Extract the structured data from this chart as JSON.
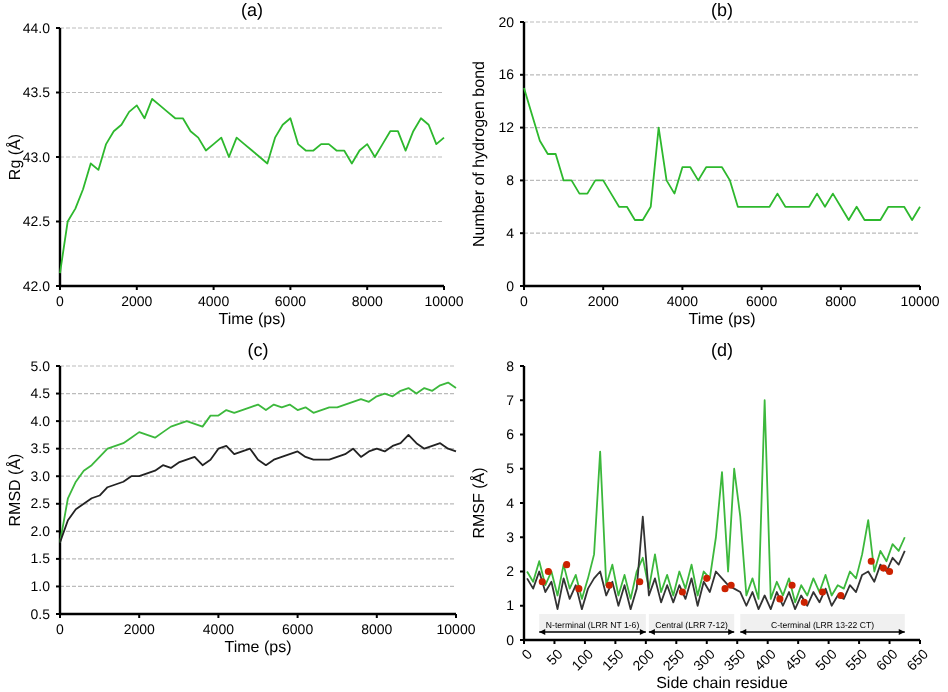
{
  "chart_data": [
    {
      "type": "line",
      "title": "(a)",
      "xlabel": "Time (ps)",
      "ylabel": "Rg (Å)",
      "xlim": [
        0,
        10000
      ],
      "xticks": [
        0,
        2000,
        4000,
        6000,
        8000,
        10000
      ],
      "ylim": [
        42,
        44
      ],
      "yticks": [
        {
          "value": 42,
          "label": "42.0"
        },
        42.5,
        {
          "value": 43,
          "label": "43.0"
        },
        43.5,
        {
          "value": 44,
          "label": "44.0"
        }
      ],
      "grid": "y",
      "line_style": "solid",
      "x": [
        0,
        200,
        400,
        600,
        800,
        1000,
        1200,
        1400,
        1600,
        1800,
        2000,
        2200,
        2400,
        2600,
        2800,
        3000,
        3200,
        3400,
        3600,
        3800,
        4000,
        4200,
        4400,
        4600,
        4800,
        5000,
        5200,
        5400,
        5600,
        5800,
        6000,
        6200,
        6400,
        6600,
        6800,
        7000,
        7200,
        7400,
        7600,
        7800,
        8000,
        8200,
        8400,
        8600,
        8800,
        9000,
        9200,
        9400,
        9600,
        9800,
        10000
      ],
      "series": [
        {
          "color": "#2db82d",
          "values": [
            42.1,
            42.5,
            42.6,
            42.75,
            42.95,
            42.9,
            43.1,
            43.2,
            43.25,
            43.35,
            43.4,
            43.3,
            43.45,
            43.4,
            43.35,
            43.3,
            43.3,
            43.2,
            43.15,
            43.05,
            43.1,
            43.15,
            43.0,
            43.15,
            43.1,
            43.05,
            43.0,
            42.95,
            43.15,
            43.25,
            43.3,
            43.1,
            43.05,
            43.05,
            43.1,
            43.1,
            43.05,
            43.05,
            42.95,
            43.05,
            43.1,
            43.0,
            43.1,
            43.2,
            43.2,
            43.05,
            43.2,
            43.3,
            43.25,
            43.1,
            43.15
          ]
        }
      ]
    },
    {
      "type": "line",
      "title": "(b)",
      "xlabel": "Time (ps)",
      "ylabel": "Number of hydrogen bond",
      "xlim": [
        0,
        10000
      ],
      "xticks": [
        0,
        2000,
        4000,
        6000,
        8000,
        10000
      ],
      "ylim": [
        0,
        20
      ],
      "yticks": [
        0,
        4,
        8,
        12,
        16,
        20
      ],
      "grid": "y",
      "line_style": "solid",
      "x": [
        0,
        200,
        400,
        600,
        800,
        1000,
        1200,
        1400,
        1600,
        1800,
        2000,
        2200,
        2400,
        2600,
        2800,
        3000,
        3200,
        3400,
        3600,
        3800,
        4000,
        4200,
        4400,
        4600,
        4800,
        5000,
        5200,
        5400,
        5600,
        5800,
        6000,
        6200,
        6400,
        6600,
        6800,
        7000,
        7200,
        7400,
        7600,
        7800,
        8000,
        8200,
        8400,
        8600,
        8800,
        9000,
        9200,
        9400,
        9600,
        9800,
        10000
      ],
      "series": [
        {
          "color": "#2db82d",
          "values": [
            15,
            13,
            11,
            10,
            10,
            8,
            8,
            7,
            7,
            8,
            8,
            7,
            6,
            6,
            5,
            5,
            6,
            12,
            8,
            7,
            9,
            9,
            8,
            9,
            9,
            9,
            8,
            6,
            6,
            6,
            6,
            6,
            7,
            6,
            6,
            6,
            6,
            7,
            6,
            7,
            6,
            5,
            6,
            5,
            5,
            5,
            6,
            6,
            6,
            5,
            6
          ]
        }
      ]
    },
    {
      "type": "line",
      "title": "(c)",
      "xlabel": "Time (ps)",
      "ylabel": "RMSD (Å)",
      "xlim": [
        0,
        10000
      ],
      "xticks": [
        0,
        2000,
        4000,
        6000,
        8000,
        10000
      ],
      "ylim": [
        0.5,
        5
      ],
      "yticks": [
        0.5,
        {
          "value": 1,
          "label": "1.0"
        },
        1.5,
        {
          "value": 2,
          "label": "2.0"
        },
        2.5,
        {
          "value": 3,
          "label": "3.0"
        },
        3.5,
        {
          "value": 4,
          "label": "4.0"
        },
        4.5,
        {
          "value": 5,
          "label": "5.0"
        }
      ],
      "grid": "y",
      "line_style": "solid",
      "x": [
        0,
        200,
        400,
        600,
        800,
        1000,
        1200,
        1400,
        1600,
        1800,
        2000,
        2200,
        2400,
        2600,
        2800,
        3000,
        3200,
        3400,
        3600,
        3800,
        4000,
        4200,
        4400,
        4600,
        4800,
        5000,
        5200,
        5400,
        5600,
        5800,
        6000,
        6200,
        6400,
        6600,
        6800,
        7000,
        7200,
        7400,
        7600,
        7800,
        8000,
        8200,
        8400,
        8600,
        8800,
        9000,
        9200,
        9400,
        9600,
        9800,
        10000
      ],
      "series": [
        {
          "color": "#3cb83c",
          "values": [
            1.8,
            2.6,
            2.9,
            3.1,
            3.2,
            3.35,
            3.5,
            3.55,
            3.6,
            3.7,
            3.8,
            3.75,
            3.7,
            3.8,
            3.9,
            3.95,
            4.0,
            3.95,
            3.9,
            4.1,
            4.1,
            4.2,
            4.15,
            4.2,
            4.25,
            4.3,
            4.2,
            4.3,
            4.25,
            4.3,
            4.2,
            4.25,
            4.15,
            4.2,
            4.25,
            4.25,
            4.3,
            4.35,
            4.4,
            4.35,
            4.45,
            4.5,
            4.45,
            4.55,
            4.6,
            4.5,
            4.6,
            4.55,
            4.65,
            4.7,
            4.6
          ]
        },
        {
          "color": "#222222",
          "values": [
            1.8,
            2.2,
            2.4,
            2.5,
            2.6,
            2.65,
            2.8,
            2.85,
            2.9,
            3.0,
            3.0,
            3.05,
            3.1,
            3.2,
            3.15,
            3.25,
            3.3,
            3.35,
            3.2,
            3.3,
            3.5,
            3.55,
            3.4,
            3.45,
            3.5,
            3.3,
            3.2,
            3.3,
            3.35,
            3.4,
            3.45,
            3.35,
            3.3,
            3.3,
            3.3,
            3.35,
            3.4,
            3.5,
            3.35,
            3.45,
            3.5,
            3.45,
            3.55,
            3.6,
            3.75,
            3.6,
            3.5,
            3.55,
            3.6,
            3.5,
            3.45
          ]
        }
      ]
    },
    {
      "type": "line",
      "title": "(d)",
      "xlabel": "Side chain residue",
      "ylabel": "RMSF (Å)",
      "xlim": [
        0,
        650
      ],
      "xticks": [
        0,
        50,
        100,
        150,
        200,
        250,
        300,
        350,
        400,
        450,
        500,
        550,
        600,
        650
      ],
      "ylim": [
        0,
        8
      ],
      "yticks": [
        0,
        1,
        2,
        3,
        4,
        5,
        6,
        7,
        8
      ],
      "grid": false,
      "line_style": "solid",
      "x": [
        5,
        15,
        25,
        35,
        45,
        55,
        65,
        75,
        85,
        95,
        105,
        115,
        125,
        135,
        145,
        155,
        165,
        175,
        185,
        195,
        205,
        215,
        225,
        235,
        245,
        255,
        265,
        275,
        285,
        295,
        305,
        315,
        325,
        335,
        345,
        355,
        365,
        375,
        385,
        395,
        405,
        415,
        425,
        435,
        445,
        455,
        465,
        475,
        485,
        495,
        505,
        515,
        525,
        535,
        545,
        555,
        565,
        575,
        585,
        595,
        605,
        615,
        625
      ],
      "series": [
        {
          "color": "#3cb83c",
          "values": [
            2.0,
            1.7,
            2.3,
            1.6,
            2.0,
            1.3,
            2.2,
            1.5,
            1.9,
            1.2,
            1.8,
            2.5,
            5.5,
            1.6,
            2.2,
            1.3,
            1.9,
            1.2,
            2.0,
            2.4,
            1.5,
            2.5,
            1.4,
            1.9,
            1.3,
            2.0,
            1.5,
            2.2,
            1.3,
            2.0,
            1.8,
            3.0,
            4.9,
            2.0,
            5.0,
            3.6,
            1.3,
            1.8,
            1.2,
            7.0,
            1.2,
            1.7,
            1.3,
            1.8,
            1.1,
            1.6,
            1.3,
            1.8,
            1.4,
            1.9,
            1.3,
            1.6,
            1.5,
            2.0,
            1.8,
            2.5,
            3.5,
            2.0,
            2.6,
            2.3,
            2.8,
            2.6,
            3.0
          ]
        },
        {
          "color": "#333333",
          "values": [
            1.8,
            1.5,
            2.0,
            1.4,
            1.7,
            0.9,
            1.8,
            1.2,
            1.6,
            0.9,
            1.5,
            1.8,
            2.0,
            1.3,
            1.7,
            1.0,
            1.6,
            0.9,
            1.5,
            3.6,
            1.3,
            1.8,
            1.1,
            1.6,
            1.1,
            1.6,
            1.2,
            1.8,
            1.0,
            1.7,
            1.4,
            2.0,
            1.8,
            1.6,
            1.5,
            1.4,
            1.0,
            1.4,
            0.9,
            1.3,
            0.9,
            1.4,
            1.0,
            1.4,
            0.9,
            1.3,
            1.0,
            1.4,
            1.1,
            1.5,
            1.0,
            1.3,
            1.2,
            1.6,
            1.4,
            1.9,
            2.0,
            1.7,
            2.2,
            2.0,
            2.4,
            2.2,
            2.6
          ]
        },
        {
          "type": "scatter",
          "marker": "circle",
          "color": "#cc2200",
          "x": [
            30,
            40,
            70,
            90,
            140,
            190,
            260,
            300,
            330,
            340,
            420,
            440,
            460,
            490,
            520,
            570,
            590,
            600
          ],
          "values": [
            1.7,
            2.0,
            2.2,
            1.5,
            1.6,
            1.7,
            1.4,
            1.8,
            1.5,
            1.6,
            1.2,
            1.6,
            1.1,
            1.4,
            1.3,
            2.3,
            2.1,
            2.0
          ]
        }
      ],
      "bands": [
        {
          "axis": "x",
          "from": 25,
          "to": 200,
          "label": "N-terminal (LRR NT 1-6)"
        },
        {
          "axis": "x",
          "from": 205,
          "to": 345,
          "label": "Central (LRR 7-12)"
        },
        {
          "axis": "x",
          "from": 355,
          "to": 625,
          "label": "C-terminal (LRR 13-22 CT)"
        }
      ]
    }
  ]
}
